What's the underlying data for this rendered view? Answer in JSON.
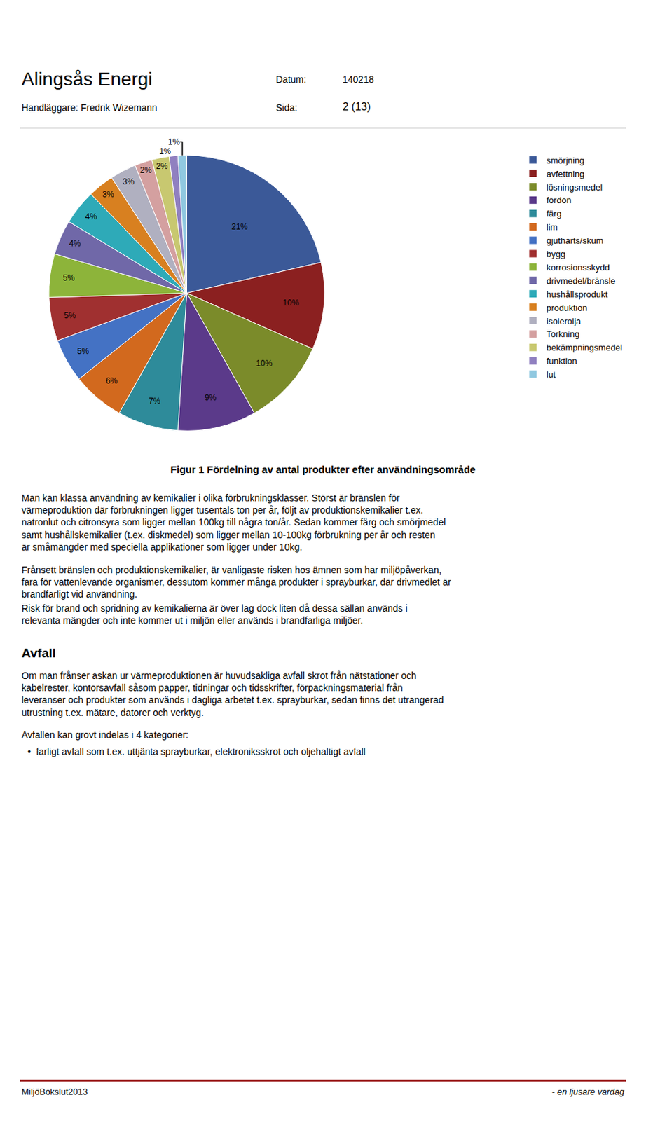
{
  "chart_data": {
    "type": "pie",
    "title": "Figur 1 Fördelning av antal produkter efter användningsområde",
    "categories": [
      "smörjning",
      "avfettning",
      "lösningsmedel",
      "fordon",
      "färg",
      "lim",
      "gjutharts/skum",
      "bygg",
      "korrosionsskydd",
      "drivmedel/bränsle",
      "hushållsprodukt",
      "produktion",
      "isolerolja",
      "Torkning",
      "bekämpningsmedel",
      "funktion",
      "lut"
    ],
    "values": [
      21,
      10,
      10,
      9,
      7,
      6,
      5,
      5,
      5,
      4,
      4,
      3,
      3,
      2,
      2,
      1,
      1
    ],
    "value_labels": [
      "21%",
      "10%",
      "10%",
      "9%",
      "7%",
      "6%",
      "5%",
      "5%",
      "5%",
      "4%",
      "4%",
      "3%",
      "3%",
      "2%",
      "2%",
      "1%",
      "1%"
    ],
    "colors": [
      "#3B5998",
      "#8B2020",
      "#7B8B2A",
      "#5B3A8A",
      "#2E8B9A",
      "#D2691E",
      "#4472C4",
      "#A03030",
      "#8DB43A",
      "#7068A8",
      "#2EAAB8",
      "#D88020",
      "#B0B0C0",
      "#D4A0A0",
      "#C8C870",
      "#9080C0",
      "#90C8E0"
    ],
    "data_labels": true,
    "legend": "upper right",
    "annotations": [
      "Alingsås Energi",
      "Handläggare: Fredrik Wizemann",
      "Datum:",
      "140218",
      "Sida:",
      "2 (13)",
      "Man kan klassa användning av kemikalier i olika förbrukningsklasser. Störst är bränslen för värmeproduktion där förbrukningen ligger tusentals ton per år, följt av produktionskemikalier t.ex. natronlut och citronsyra som ligger mellan 100kg till några ton/år. Sedan kommer färg och smörjmedel samt hushållskemikalier (t.ex. diskmedel) som ligger mellan 10-100kg förbrukning per år och resten är småmängder med speciella applikationer som ligger under 10kg.",
      "Frånsett bränslen och produktionskemikalier, är vanligaste risken hos ämnen som har miljöpåverkan, fara för vattenlevande organismer, dessutom kommer många produkter i sprayburkar, där drivmedlet är brandfarligt vid användning.",
      "Risk för brand och spridning av kemikalierna är över lag dock liten då dessa sällan används i relevanta mängder och inte kommer ut i miljön eller används i brandfarliga miljöer.",
      "Avfall",
      "Om man frånser askan ur värmeproduktionen är huvudsakliga avfall skrot från nätstationer och kabelrester, kontorsavfall såsom papper, tidningar och tidsskrifter, förpackningsmaterial från leveranser och produkter som används i dagliga arbetet t.ex. sprayburkar, sedan finns det utrangerad utrustning t.ex. mätare, datorer och verktyg.",
      "Avfallen kan grovt indelas i 4 kategorier:",
      "•  farligt avfall som t.ex. uttjänta sprayburkar, elektroniksskrot och oljehaltigt avfall",
      "MiljöBokslut2013",
      "- en ljusare vardag"
    ]
  }
}
